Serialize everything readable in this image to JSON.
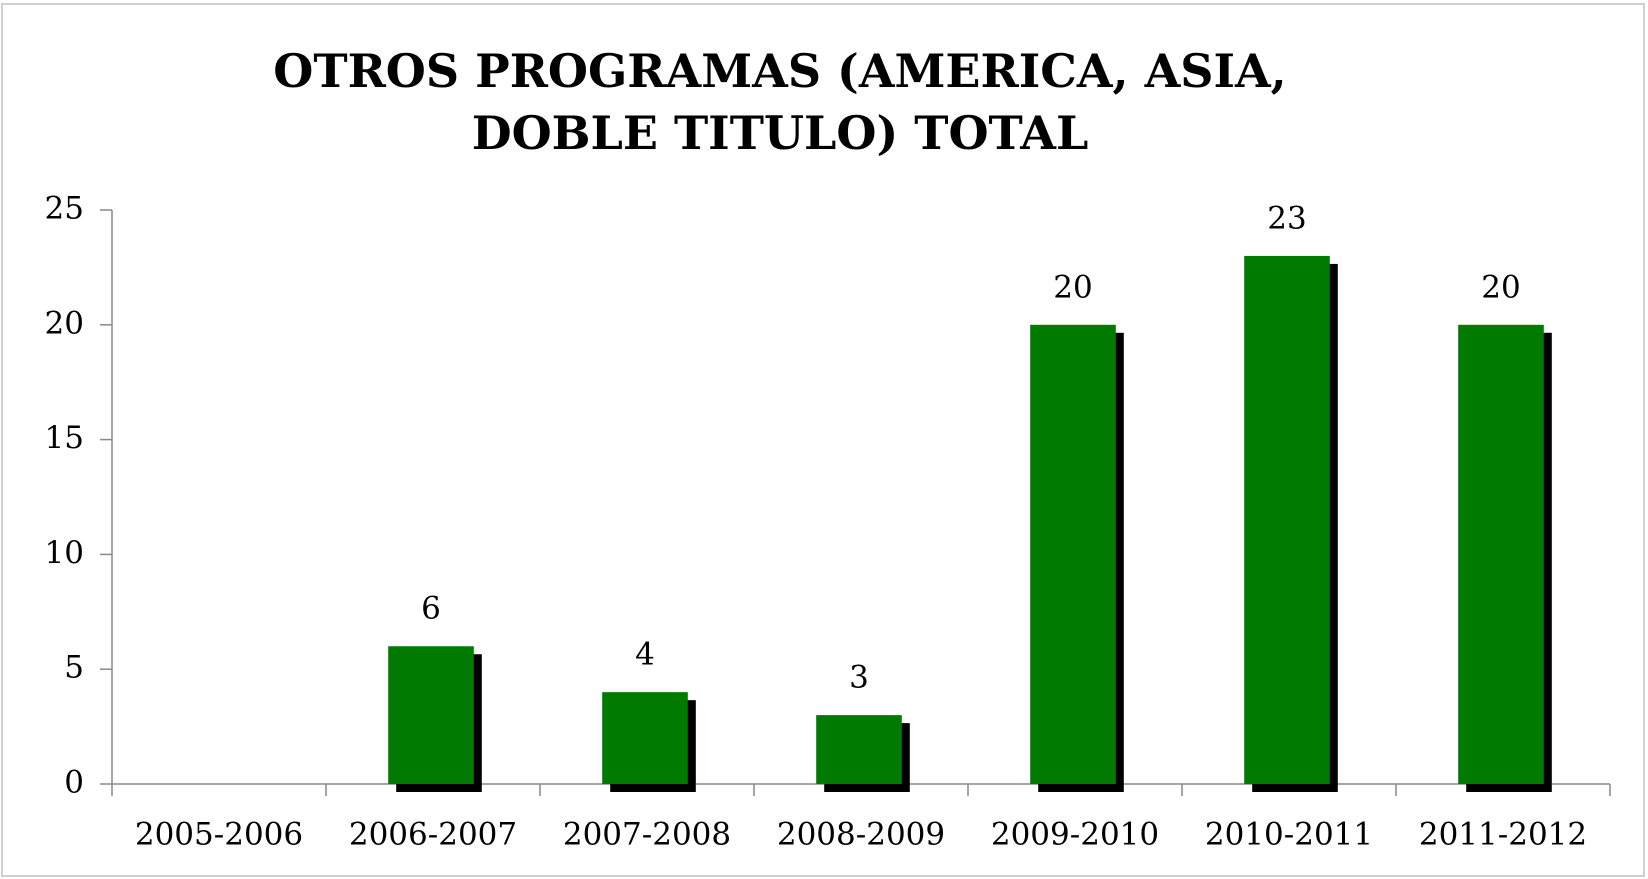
{
  "chart_data": {
    "type": "bar",
    "title": "OTROS PROGRAMAS (AMERICA, ASIA, DOBLE TITULO) TOTAL",
    "categories": [
      "2005-2006",
      "2006-2007",
      "2007-2008",
      "2008-2009",
      "2009-2010",
      "2010-2011",
      "2011-2012"
    ],
    "values": [
      null,
      6,
      4,
      3,
      20,
      23,
      20
    ],
    "color": "#007a00",
    "ylim": [
      0,
      25
    ],
    "yticks": [
      0,
      5,
      10,
      15,
      20,
      25
    ],
    "grid": false
  }
}
